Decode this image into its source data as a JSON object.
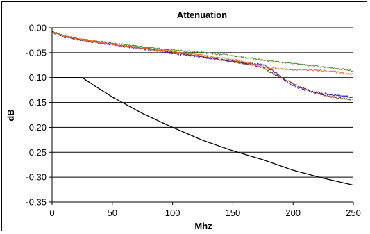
{
  "chart_data": {
    "type": "line",
    "title": "Attenuation",
    "xlabel": "Mhz",
    "ylabel": "dB",
    "xlim": [
      0,
      250
    ],
    "ylim": [
      -0.35,
      0.0
    ],
    "x_ticks": [
      0,
      50,
      100,
      150,
      200,
      250
    ],
    "y_ticks": [
      0.0,
      -0.05,
      -0.1,
      -0.15,
      -0.2,
      -0.25,
      -0.3,
      -0.35
    ],
    "x_tick_labels": [
      "0",
      "50",
      "100",
      "150",
      "200",
      "250"
    ],
    "y_tick_labels": [
      "0.00",
      "-0.05",
      "-0.10",
      "-0.15",
      "-0.20",
      "-0.25",
      "-0.30",
      "-0.35"
    ],
    "grid": "horizontal",
    "legend": "none",
    "series": [
      {
        "color": "#000000",
        "points": [
          [
            0,
            -0.1
          ],
          [
            25,
            -0.1
          ],
          [
            35,
            -0.116
          ],
          [
            50,
            -0.139
          ],
          [
            75,
            -0.172
          ],
          [
            100,
            -0.2
          ],
          [
            125,
            -0.226
          ],
          [
            150,
            -0.247
          ],
          [
            175,
            -0.265
          ],
          [
            200,
            -0.286
          ],
          [
            225,
            -0.302
          ],
          [
            250,
            -0.316
          ]
        ]
      },
      {
        "color": "#2b2bd6",
        "noise": 0.0022,
        "points": [
          [
            0,
            -0.008
          ],
          [
            10,
            -0.018
          ],
          [
            25,
            -0.025
          ],
          [
            50,
            -0.034
          ],
          [
            75,
            -0.042
          ],
          [
            100,
            -0.051
          ],
          [
            125,
            -0.059
          ],
          [
            150,
            -0.067
          ],
          [
            165,
            -0.072
          ],
          [
            175,
            -0.073
          ],
          [
            185,
            -0.09
          ],
          [
            200,
            -0.117
          ],
          [
            215,
            -0.128
          ],
          [
            230,
            -0.134
          ],
          [
            240,
            -0.136
          ],
          [
            250,
            -0.14
          ]
        ]
      },
      {
        "color": "#8b2a12",
        "noise": 0.0018,
        "points": [
          [
            0,
            -0.008
          ],
          [
            10,
            -0.017
          ],
          [
            25,
            -0.024
          ],
          [
            50,
            -0.033
          ],
          [
            75,
            -0.041
          ],
          [
            100,
            -0.049
          ],
          [
            125,
            -0.058
          ],
          [
            150,
            -0.068
          ],
          [
            165,
            -0.074
          ],
          [
            175,
            -0.08
          ],
          [
            185,
            -0.094
          ],
          [
            200,
            -0.112
          ],
          [
            215,
            -0.128
          ],
          [
            230,
            -0.138
          ],
          [
            240,
            -0.142
          ],
          [
            250,
            -0.144
          ]
        ]
      },
      {
        "color": "#4a8a2c",
        "noise": 0.0016,
        "points": [
          [
            0,
            -0.007
          ],
          [
            10,
            -0.016
          ],
          [
            25,
            -0.023
          ],
          [
            50,
            -0.031
          ],
          [
            75,
            -0.038
          ],
          [
            100,
            -0.045
          ],
          [
            125,
            -0.05
          ],
          [
            150,
            -0.056
          ],
          [
            165,
            -0.061
          ],
          [
            175,
            -0.065
          ],
          [
            185,
            -0.068
          ],
          [
            200,
            -0.072
          ],
          [
            215,
            -0.076
          ],
          [
            230,
            -0.08
          ],
          [
            240,
            -0.083
          ],
          [
            250,
            -0.086
          ]
        ]
      },
      {
        "color": "#ff6a1a",
        "noise": 0.0018,
        "points": [
          [
            0,
            -0.008
          ],
          [
            10,
            -0.017
          ],
          [
            25,
            -0.024
          ],
          [
            50,
            -0.033
          ],
          [
            75,
            -0.041
          ],
          [
            100,
            -0.048
          ],
          [
            125,
            -0.055
          ],
          [
            150,
            -0.064
          ],
          [
            165,
            -0.072
          ],
          [
            175,
            -0.078
          ],
          [
            185,
            -0.082
          ],
          [
            200,
            -0.084
          ],
          [
            215,
            -0.085
          ],
          [
            230,
            -0.087
          ],
          [
            240,
            -0.09
          ],
          [
            250,
            -0.094
          ]
        ]
      }
    ]
  }
}
